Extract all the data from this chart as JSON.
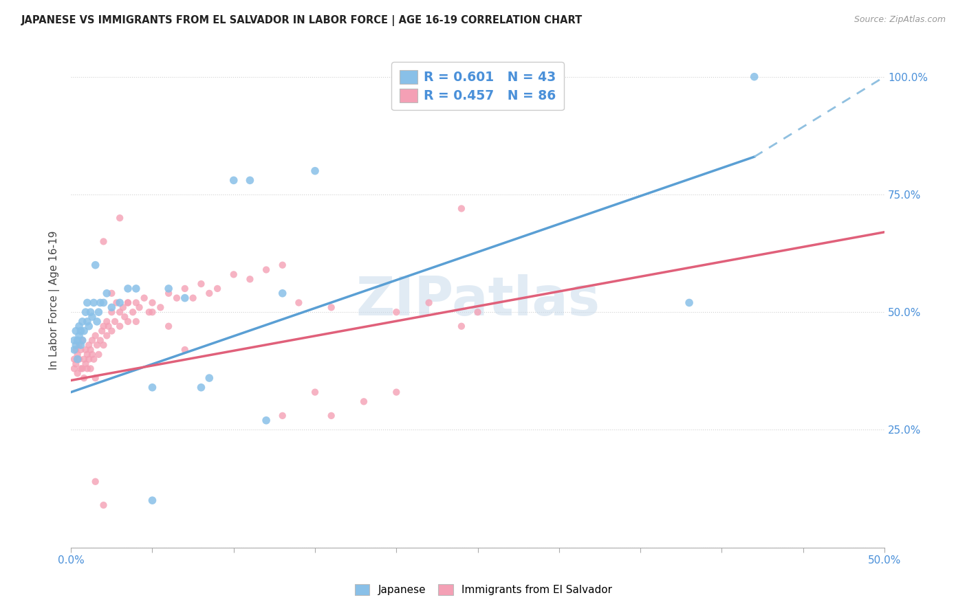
{
  "title": "JAPANESE VS IMMIGRANTS FROM EL SALVADOR IN LABOR FORCE | AGE 16-19 CORRELATION CHART",
  "source": "Source: ZipAtlas.com",
  "ylabel": "In Labor Force | Age 16-19",
  "xlim": [
    0.0,
    0.5
  ],
  "ylim": [
    0.0,
    1.05
  ],
  "color_japanese": "#89c0e8",
  "color_salvador": "#f4a0b5",
  "color_line_japanese": "#5a9fd4",
  "color_line_salvador": "#e0607a",
  "color_line_japanese_dashed": "#90c0e0",
  "watermark": "ZIPatlas",
  "line_blue_x0": 0.0,
  "line_blue_y0": 0.33,
  "line_blue_x1": 0.42,
  "line_blue_y1": 0.83,
  "line_blue_dash_x1": 0.5,
  "line_blue_dash_y1": 1.0,
  "line_pink_x0": 0.0,
  "line_pink_y0": 0.355,
  "line_pink_x1": 0.5,
  "line_pink_y1": 0.67,
  "japanese_pts": [
    [
      0.002,
      0.42
    ],
    [
      0.002,
      0.44
    ],
    [
      0.003,
      0.43
    ],
    [
      0.003,
      0.46
    ],
    [
      0.004,
      0.44
    ],
    [
      0.004,
      0.4
    ],
    [
      0.005,
      0.45
    ],
    [
      0.005,
      0.47
    ],
    [
      0.006,
      0.46
    ],
    [
      0.006,
      0.43
    ],
    [
      0.007,
      0.48
    ],
    [
      0.007,
      0.44
    ],
    [
      0.008,
      0.46
    ],
    [
      0.009,
      0.5
    ],
    [
      0.01,
      0.48
    ],
    [
      0.01,
      0.52
    ],
    [
      0.011,
      0.47
    ],
    [
      0.012,
      0.5
    ],
    [
      0.013,
      0.49
    ],
    [
      0.014,
      0.52
    ],
    [
      0.015,
      0.6
    ],
    [
      0.016,
      0.48
    ],
    [
      0.017,
      0.5
    ],
    [
      0.018,
      0.52
    ],
    [
      0.02,
      0.52
    ],
    [
      0.022,
      0.54
    ],
    [
      0.025,
      0.51
    ],
    [
      0.03,
      0.52
    ],
    [
      0.035,
      0.55
    ],
    [
      0.04,
      0.55
    ],
    [
      0.05,
      0.34
    ],
    [
      0.06,
      0.55
    ],
    [
      0.07,
      0.53
    ],
    [
      0.08,
      0.34
    ],
    [
      0.085,
      0.36
    ],
    [
      0.1,
      0.78
    ],
    [
      0.11,
      0.78
    ],
    [
      0.13,
      0.54
    ],
    [
      0.15,
      0.8
    ],
    [
      0.12,
      0.27
    ],
    [
      0.05,
      0.1
    ],
    [
      0.38,
      0.52
    ],
    [
      0.42,
      1.0
    ]
  ],
  "salvador_pts": [
    [
      0.002,
      0.4
    ],
    [
      0.002,
      0.38
    ],
    [
      0.003,
      0.42
    ],
    [
      0.003,
      0.39
    ],
    [
      0.004,
      0.41
    ],
    [
      0.004,
      0.37
    ],
    [
      0.005,
      0.43
    ],
    [
      0.005,
      0.4
    ],
    [
      0.006,
      0.38
    ],
    [
      0.006,
      0.42
    ],
    [
      0.007,
      0.44
    ],
    [
      0.007,
      0.38
    ],
    [
      0.008,
      0.4
    ],
    [
      0.008,
      0.36
    ],
    [
      0.009,
      0.42
    ],
    [
      0.009,
      0.39
    ],
    [
      0.01,
      0.41
    ],
    [
      0.01,
      0.38
    ],
    [
      0.011,
      0.43
    ],
    [
      0.011,
      0.4
    ],
    [
      0.012,
      0.42
    ],
    [
      0.012,
      0.38
    ],
    [
      0.013,
      0.44
    ],
    [
      0.013,
      0.41
    ],
    [
      0.014,
      0.4
    ],
    [
      0.015,
      0.45
    ],
    [
      0.015,
      0.36
    ],
    [
      0.016,
      0.43
    ],
    [
      0.017,
      0.41
    ],
    [
      0.018,
      0.44
    ],
    [
      0.019,
      0.46
    ],
    [
      0.02,
      0.47
    ],
    [
      0.02,
      0.43
    ],
    [
      0.022,
      0.48
    ],
    [
      0.022,
      0.45
    ],
    [
      0.023,
      0.47
    ],
    [
      0.025,
      0.5
    ],
    [
      0.025,
      0.46
    ],
    [
      0.027,
      0.48
    ],
    [
      0.028,
      0.52
    ],
    [
      0.03,
      0.5
    ],
    [
      0.03,
      0.47
    ],
    [
      0.032,
      0.51
    ],
    [
      0.033,
      0.49
    ],
    [
      0.035,
      0.52
    ],
    [
      0.035,
      0.48
    ],
    [
      0.038,
      0.5
    ],
    [
      0.04,
      0.52
    ],
    [
      0.042,
      0.51
    ],
    [
      0.045,
      0.53
    ],
    [
      0.048,
      0.5
    ],
    [
      0.05,
      0.52
    ],
    [
      0.055,
      0.51
    ],
    [
      0.06,
      0.54
    ],
    [
      0.065,
      0.53
    ],
    [
      0.07,
      0.55
    ],
    [
      0.075,
      0.53
    ],
    [
      0.08,
      0.56
    ],
    [
      0.085,
      0.54
    ],
    [
      0.09,
      0.55
    ],
    [
      0.1,
      0.58
    ],
    [
      0.11,
      0.57
    ],
    [
      0.12,
      0.59
    ],
    [
      0.13,
      0.6
    ],
    [
      0.14,
      0.52
    ],
    [
      0.15,
      0.33
    ],
    [
      0.16,
      0.51
    ],
    [
      0.18,
      0.31
    ],
    [
      0.2,
      0.5
    ],
    [
      0.22,
      0.52
    ],
    [
      0.24,
      0.47
    ],
    [
      0.25,
      0.5
    ],
    [
      0.13,
      0.28
    ],
    [
      0.16,
      0.28
    ],
    [
      0.2,
      0.33
    ],
    [
      0.24,
      0.72
    ],
    [
      0.02,
      0.65
    ],
    [
      0.03,
      0.7
    ],
    [
      0.025,
      0.54
    ],
    [
      0.035,
      0.52
    ],
    [
      0.04,
      0.48
    ],
    [
      0.05,
      0.5
    ],
    [
      0.06,
      0.47
    ],
    [
      0.07,
      0.42
    ],
    [
      0.015,
      0.14
    ],
    [
      0.02,
      0.09
    ]
  ]
}
